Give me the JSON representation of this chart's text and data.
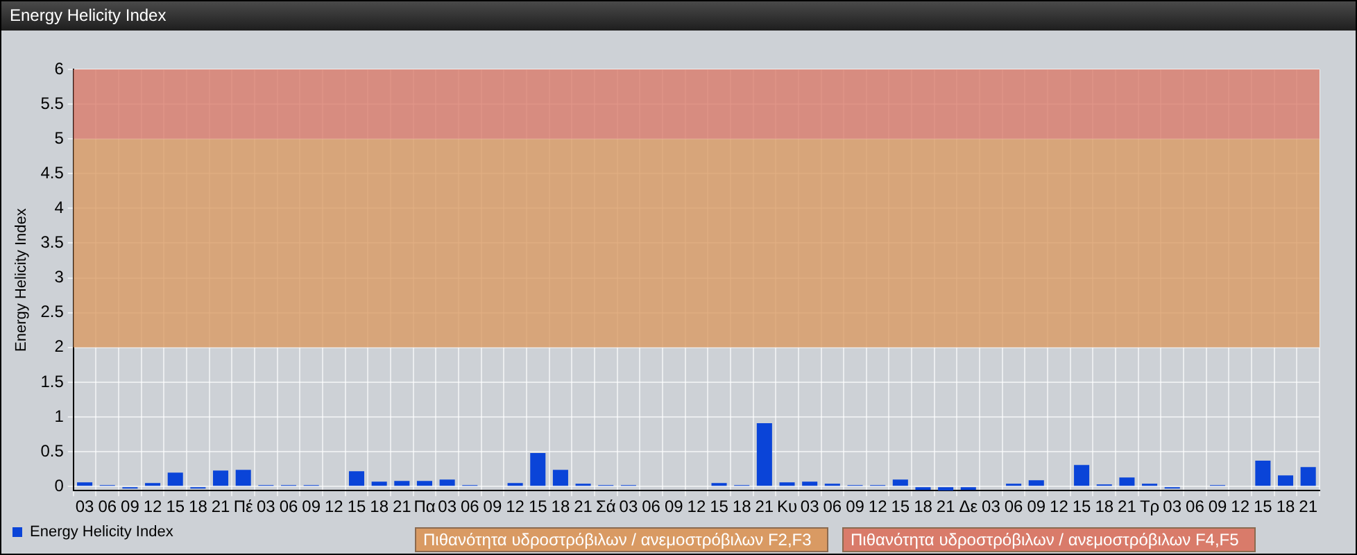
{
  "chart_data": {
    "type": "bar",
    "title": "Energy Helicity Index",
    "ylabel": "Energy Helicity Index",
    "categories": [
      "03",
      "06",
      "09",
      "12",
      "15",
      "18",
      "21",
      "Πέ",
      "03",
      "06",
      "09",
      "12",
      "15",
      "18",
      "21",
      "Πα",
      "03",
      "06",
      "09",
      "12",
      "15",
      "18",
      "21",
      "Σά",
      "03",
      "06",
      "09",
      "12",
      "15",
      "18",
      "21",
      "Κυ",
      "03",
      "06",
      "09",
      "12",
      "15",
      "18",
      "21",
      "Δε",
      "03",
      "06",
      "09",
      "12",
      "15",
      "18",
      "21",
      "Τρ",
      "03",
      "06",
      "09",
      "12",
      "15",
      "18",
      "21"
    ],
    "series": [
      {
        "name": "Energy Helicity Index",
        "color": "#0a44d8",
        "values": [
          0.06,
          0.02,
          -0.03,
          0.05,
          0.2,
          -0.03,
          0.23,
          0.24,
          0.02,
          0.02,
          0.02,
          0.01,
          0.22,
          0.07,
          0.08,
          0.08,
          0.1,
          0.02,
          0.01,
          0.05,
          0.48,
          0.24,
          0.04,
          0.02,
          0.02,
          0.01,
          0.01,
          0.01,
          0.05,
          0.02,
          0.91,
          0.06,
          0.07,
          0.04,
          0.02,
          0.02,
          0.1,
          -0.05,
          -0.06,
          -0.05,
          0.01,
          0.04,
          0.09,
          0.01,
          0.31,
          0.03,
          0.13,
          0.04,
          -0.03,
          0.01,
          0.02,
          0.01,
          0.37,
          0.16,
          0.28
        ]
      }
    ],
    "ylim": [
      -0.06,
      6
    ],
    "yticks": [
      0,
      0.5,
      1,
      1.5,
      2,
      2.5,
      3,
      3.5,
      4,
      4.5,
      5,
      5.5,
      6
    ],
    "bands": [
      {
        "axis": "y",
        "from": 2,
        "to": 5,
        "label": "Πιθανότητα υδροστρόβιλων / ανεμοστρόβιλων F2,F3",
        "color": "#d99a63"
      },
      {
        "axis": "y",
        "from": 5,
        "to": 6,
        "label": "Πιθανότητα υδροστρόβιλων / ανεμοστρόβιλων F4,F5",
        "color": "#d97b6a"
      }
    ],
    "grid": true,
    "legend": "bottom left"
  }
}
